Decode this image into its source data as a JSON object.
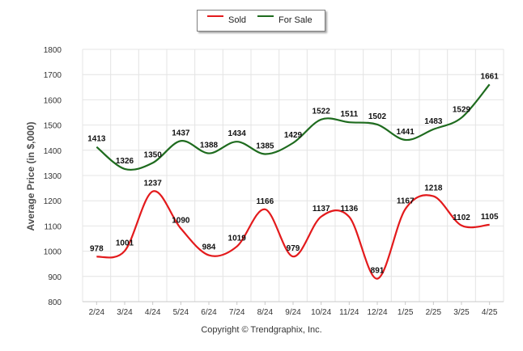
{
  "chart_data": {
    "type": "line",
    "categories": [
      "2/24",
      "3/24",
      "4/24",
      "5/24",
      "6/24",
      "7/24",
      "8/24",
      "9/24",
      "10/24",
      "11/24",
      "12/24",
      "1/25",
      "2/25",
      "3/25",
      "4/25"
    ],
    "series": [
      {
        "name": "Sold",
        "color": "#e31a1c",
        "values": [
          978,
          1001,
          1237,
          1090,
          984,
          1019,
          1166,
          979,
          1137,
          1136,
          891,
          1167,
          1218,
          1102,
          1105
        ]
      },
      {
        "name": "For Sale",
        "color": "#1e6b1e",
        "values": [
          1413,
          1326,
          1350,
          1437,
          1388,
          1434,
          1385,
          1429,
          1522,
          1511,
          1502,
          1441,
          1483,
          1529,
          1661
        ]
      }
    ],
    "ylabel": "Average Price (in $,000)",
    "ylim": [
      800,
      1800
    ],
    "yticks": [
      800,
      900,
      1000,
      1100,
      1200,
      1300,
      1400,
      1500,
      1600,
      1700,
      1800
    ],
    "grid": true,
    "legend_position": "top-center"
  },
  "legend": {
    "sold": "Sold",
    "for_sale": "For Sale"
  },
  "copyright": "Copyright © Trendgraphix, Inc."
}
